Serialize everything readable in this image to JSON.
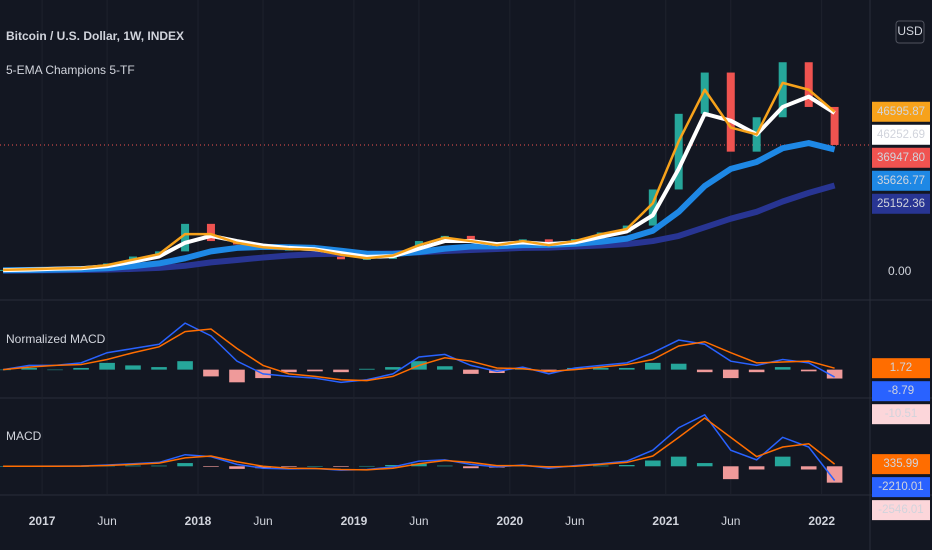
{
  "chart_data": [
    {
      "type": "candlestick",
      "title": "Bitcoin / U.S. Dollar, 1W, INDEX",
      "subtitle": "5-EMA Champions 5-TF",
      "unit": "USD",
      "x": [
        2016.75,
        2016.917,
        2017.083,
        2017.25,
        2017.417,
        2017.583,
        2017.75,
        2017.917,
        2018.083,
        2018.25,
        2018.417,
        2018.583,
        2018.75,
        2018.917,
        2019.083,
        2019.25,
        2019.417,
        2019.583,
        2019.75,
        2019.917,
        2020.083,
        2020.25,
        2020.417,
        2020.583,
        2020.75,
        2020.917,
        2021.083,
        2021.25,
        2021.417,
        2021.583,
        2021.75,
        2021.917,
        2022.083
      ],
      "xlim": [
        2016.73,
        2022.31
      ],
      "xticks": [
        {
          "value": 2017,
          "label": "2017"
        },
        {
          "value": 2017.417,
          "label": "Jun"
        },
        {
          "value": 2018,
          "label": "2018"
        },
        {
          "value": 2018.417,
          "label": "Jun"
        },
        {
          "value": 2019,
          "label": "2019"
        },
        {
          "value": 2019.417,
          "label": "Jun"
        },
        {
          "value": 2020,
          "label": "2020"
        },
        {
          "value": 2020.417,
          "label": "Jun"
        },
        {
          "value": 2021,
          "label": "2021"
        },
        {
          "value": 2021.417,
          "label": "Jun"
        },
        {
          "value": 2022,
          "label": "2022"
        }
      ],
      "grid": true,
      "ylim": [
        0,
        79100
      ],
      "yticks": [
        {
          "value": 0,
          "label": "0.00"
        }
      ],
      "close": [
        610,
        900,
        1000,
        1200,
        2500,
        4500,
        6000,
        14000,
        9000,
        8000,
        6500,
        6500,
        6400,
        3700,
        3800,
        5200,
        9000,
        10500,
        8500,
        7300,
        9500,
        7000,
        9600,
        11500,
        13500,
        24000,
        46000,
        58000,
        35000,
        45000,
        61000,
        48000,
        36947.8
      ],
      "up_color": "#26a69a",
      "down_color": "#ef5350",
      "last_price": {
        "value": 36947.8,
        "label": "36947.80"
      },
      "last_price_color": "#f05350",
      "series": [
        {
          "color": "#283593",
          "width": 6,
          "values": [
            400,
            450,
            500,
            580,
            700,
            900,
            1200,
            1800,
            2800,
            3500,
            4200,
            4800,
            5200,
            5300,
            5300,
            5400,
            5700,
            6100,
            6400,
            6700,
            7000,
            7100,
            7400,
            7700,
            8100,
            9000,
            10500,
            13000,
            15500,
            17500,
            20500,
            23000,
            25152.36
          ]
        },
        {
          "color": "#1e88e5",
          "width": 6,
          "values": [
            500,
            580,
            700,
            850,
            1100,
            1700,
            2500,
            4000,
            6000,
            7000,
            7300,
            7200,
            7000,
            6200,
            5300,
            5200,
            5800,
            6800,
            7400,
            7500,
            7800,
            7900,
            8200,
            8800,
            9700,
            12000,
            17500,
            25000,
            30000,
            32000,
            36000,
            37500,
            35626.77
          ]
        },
        {
          "color": "#ffffff",
          "width": 4,
          "values": [
            550,
            700,
            950,
            1100,
            1700,
            3000,
            4500,
            8500,
            10500,
            9000,
            7700,
            7000,
            6600,
            5500,
            4400,
            4600,
            6800,
            9000,
            9000,
            8100,
            8600,
            8100,
            8600,
            10200,
            11800,
            16500,
            30000,
            46000,
            44000,
            40000,
            48000,
            51000,
            46252.69
          ]
        },
        {
          "color": "#f7a21b",
          "width": 2.5,
          "values": [
            600,
            800,
            1000,
            1150,
            2000,
            3600,
            5200,
            11000,
            11000,
            8500,
            7200,
            6700,
            6500,
            5000,
            4000,
            4800,
            7800,
            10000,
            9000,
            7800,
            9000,
            7800,
            9000,
            11000,
            12500,
            20000,
            38000,
            53000,
            42000,
            40000,
            55000,
            53000,
            46595.87
          ]
        }
      ]
    },
    {
      "type": "macd",
      "title": "Normalized MACD",
      "ylim": [
        -30,
        80
      ],
      "series": [
        {
          "color": "#2962ff",
          "values": [
            0,
            5,
            5,
            8,
            20,
            25,
            30,
            55,
            40,
            10,
            -5,
            -8,
            -10,
            -15,
            -12,
            -5,
            15,
            18,
            5,
            -2,
            3,
            -5,
            2,
            5,
            8,
            20,
            35,
            30,
            10,
            5,
            12,
            8,
            -8.79
          ]
        },
        {
          "color": "#ff6d00",
          "values": [
            0,
            3,
            5,
            6,
            12,
            20,
            27,
            45,
            48,
            25,
            5,
            -5,
            -8,
            -12,
            -13,
            -8,
            5,
            14,
            10,
            2,
            1,
            -2,
            0,
            3,
            6,
            12,
            28,
            33,
            20,
            8,
            9,
            10,
            1.72
          ]
        }
      ],
      "histogram": {
        "up_color": "#26a69a",
        "down_color": "#ef9a9a",
        "tag_color": "#fcd6da",
        "values": [
          0,
          2,
          0,
          2,
          8,
          5,
          3,
          10,
          -8,
          -15,
          -10,
          -3,
          -2,
          -3,
          1,
          3,
          10,
          4,
          -5,
          -4,
          2,
          -3,
          2,
          2,
          2,
          8,
          7,
          -3,
          -10,
          -3,
          3,
          -2,
          -10.51
        ]
      }
    },
    {
      "type": "macd",
      "title": "MACD",
      "ylim": [
        -4000,
        10000
      ],
      "series": [
        {
          "color": "#2962ff",
          "values": [
            0,
            10,
            20,
            40,
            200,
            400,
            600,
            1800,
            1500,
            300,
            -300,
            -400,
            -350,
            -600,
            -500,
            -100,
            800,
            1000,
            300,
            -100,
            200,
            -300,
            100,
            400,
            800,
            2500,
            6000,
            8000,
            2500,
            1000,
            4500,
            3000,
            -2210.01
          ]
        },
        {
          "color": "#ff6d00",
          "values": [
            0,
            5,
            15,
            30,
            120,
            300,
            500,
            1300,
            1600,
            700,
            0,
            -300,
            -350,
            -500,
            -550,
            -300,
            400,
            900,
            600,
            100,
            100,
            -100,
            0,
            300,
            600,
            1600,
            4500,
            7500,
            4500,
            1500,
            3000,
            3500,
            335.99
          ]
        }
      ],
      "histogram": {
        "up_color": "#26a69a",
        "down_color": "#ef9a9a",
        "tag_color": "#fcd6da",
        "values": [
          0,
          5,
          5,
          10,
          80,
          100,
          100,
          500,
          -100,
          -400,
          -300,
          -100,
          0,
          -100,
          50,
          200,
          400,
          100,
          -300,
          -200,
          100,
          -200,
          100,
          100,
          200,
          900,
          1500,
          500,
          -2000,
          -500,
          1500,
          -500,
          -2546.01
        ]
      }
    }
  ]
}
